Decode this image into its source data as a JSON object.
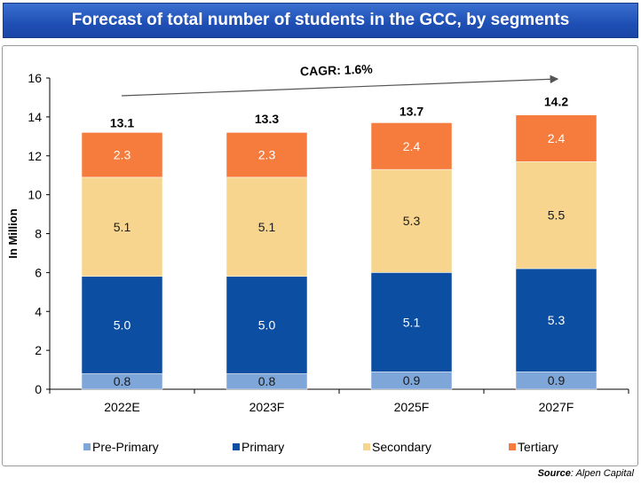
{
  "title": "Forecast of total number of students in the GCC, by segments",
  "source_label": "Source",
  "source_text": ": Alpen Capital",
  "chart_data": {
    "type": "bar",
    "stacked": true,
    "categories": [
      "2022E",
      "2023F",
      "2025F",
      "2027F"
    ],
    "series": [
      {
        "name": "Pre-Primary",
        "values": [
          0.8,
          0.8,
          0.9,
          0.9
        ],
        "color": "#7ea6d8"
      },
      {
        "name": "Primary",
        "values": [
          5.0,
          5.0,
          5.1,
          5.3
        ],
        "color": "#0c4ea2"
      },
      {
        "name": "Secondary",
        "values": [
          5.1,
          5.1,
          5.3,
          5.5
        ],
        "color": "#f7d58e"
      },
      {
        "name": "Tertiary",
        "values": [
          2.3,
          2.3,
          2.4,
          2.4
        ],
        "color": "#f57c3d"
      }
    ],
    "totals": [
      13.1,
      13.3,
      13.7,
      14.2
    ],
    "ylabel": "In Million",
    "ylim": [
      0,
      16
    ],
    "yticks": [
      0,
      2,
      4,
      6,
      8,
      10,
      12,
      14,
      16
    ],
    "annotation": "CAGR: 1.6%",
    "legend": "bottom",
    "grid": false
  }
}
